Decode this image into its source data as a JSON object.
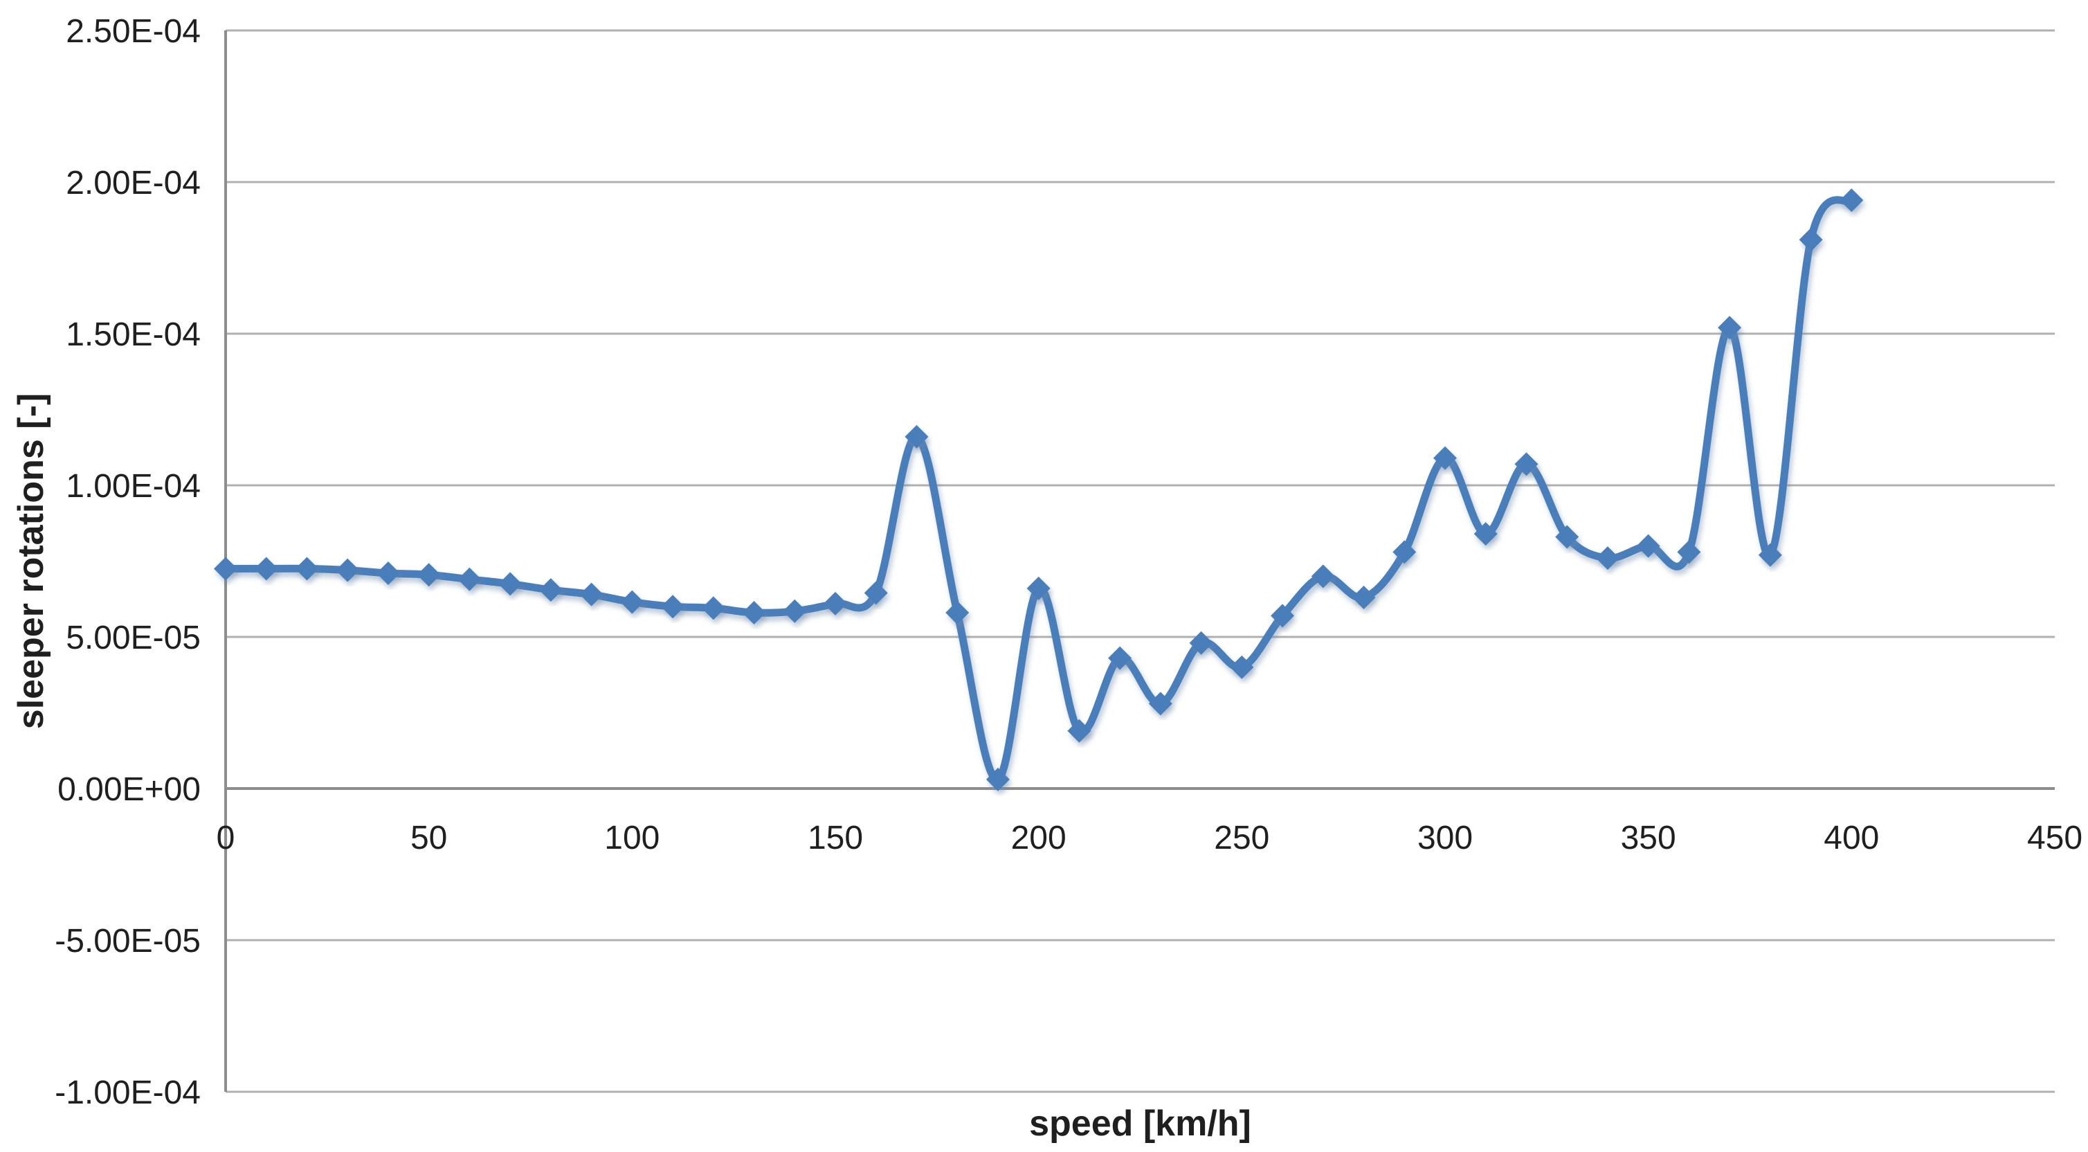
{
  "chart_data": {
    "type": "line",
    "title": "",
    "xlabel": "speed [km/h]",
    "ylabel": "sleeper rotations [-]",
    "series": [
      {
        "name": "sleeper rotations",
        "x": [
          0,
          10,
          20,
          30,
          40,
          50,
          60,
          70,
          80,
          90,
          100,
          110,
          120,
          130,
          140,
          150,
          160,
          170,
          180,
          190,
          200,
          210,
          220,
          230,
          240,
          250,
          260,
          270,
          280,
          290,
          300,
          310,
          320,
          330,
          340,
          350,
          360,
          370,
          380,
          390,
          400
        ],
        "y": [
          7.25e-05,
          7.25e-05,
          7.25e-05,
          7.2e-05,
          7.1e-05,
          7.05e-05,
          6.9e-05,
          6.75e-05,
          6.55e-05,
          6.4e-05,
          6.15e-05,
          6e-05,
          5.95e-05,
          5.8e-05,
          5.85e-05,
          6.1e-05,
          6.45e-05,
          0.000116,
          5.8e-05,
          3e-06,
          6.6e-05,
          1.9e-05,
          4.3e-05,
          2.8e-05,
          4.8e-05,
          4e-05,
          5.7e-05,
          7e-05,
          6.3e-05,
          7.8e-05,
          0.000109,
          8.4e-05,
          0.000107,
          8.3e-05,
          7.6e-05,
          8e-05,
          7.8e-05,
          0.000152,
          7.7e-05,
          0.000181,
          0.000194
        ]
      }
    ],
    "xlim": [
      0,
      450
    ],
    "ylim": [
      -0.0001,
      0.00025
    ],
    "x_tick_values": [
      0,
      50,
      100,
      150,
      200,
      250,
      300,
      350,
      400,
      450
    ],
    "x_tick_labels": [
      "0",
      "50",
      "100",
      "150",
      "200",
      "250",
      "300",
      "350",
      "400",
      "450"
    ],
    "y_tick_values": [
      0.00025,
      0.0002,
      0.00015,
      0.0001,
      5e-05,
      0,
      -5e-05,
      -0.0001
    ],
    "y_tick_labels": [
      "2.50E-04",
      "2.00E-04",
      "1.50E-04",
      "1.00E-04",
      "5.00E-05",
      "0.00E+00",
      "-5.00E-05",
      "-1.00E-04"
    ],
    "grid": "horizontal-only",
    "legend": "none",
    "line_smooth": true,
    "marker_shape": "diamond"
  },
  "style": {
    "background_color": "#ffffff",
    "series_color": "#4a7ebb",
    "gridline_color": "#b0b0b0",
    "axis_line_color": "#8c8c8c",
    "text_color": "#1f1f1f"
  }
}
